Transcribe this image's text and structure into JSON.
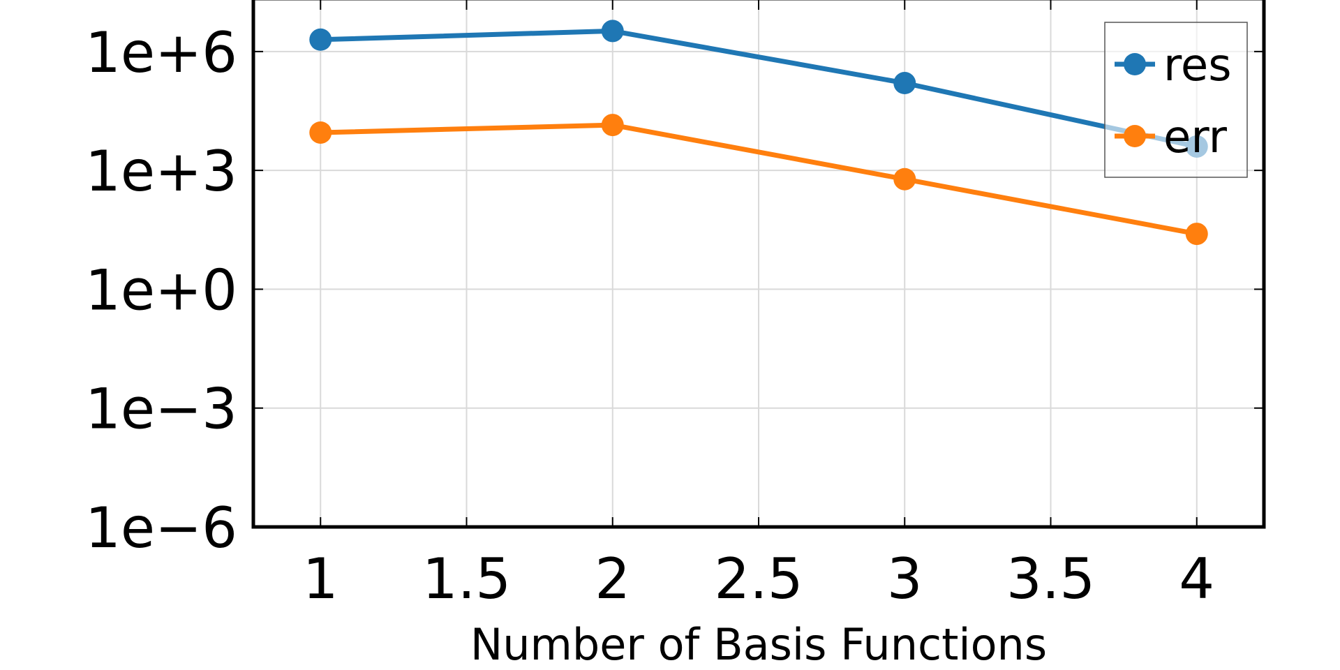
{
  "chart_data": {
    "type": "line",
    "title": "",
    "xlabel": "Number of Basis Functions",
    "ylabel": "",
    "yscale": "log",
    "x": [
      1,
      2,
      3,
      4
    ],
    "xlim": [
      0.77,
      4.23
    ],
    "ylim": [
      1e-06,
      20000000.0
    ],
    "xticks": [
      1,
      1.5,
      2,
      2.5,
      3,
      3.5,
      4
    ],
    "xtick_labels": [
      "1",
      "1.5",
      "2",
      "2.5",
      "3",
      "3.5",
      "4"
    ],
    "yticks": [
      1e-06,
      0.001,
      1,
      1000.0,
      1000000.0
    ],
    "ytick_labels": [
      "1e−6",
      "1e−3",
      "1e+0",
      "1e+3",
      "1e+6"
    ],
    "grid": true,
    "legend_position": "top-right",
    "series": [
      {
        "name": "res",
        "color": "#1f77b4",
        "values": [
          2000000,
          3300000,
          160000,
          4000
        ]
      },
      {
        "name": "err",
        "color": "#ff7f0e",
        "values": [
          9000,
          14000,
          600,
          25
        ]
      }
    ]
  }
}
